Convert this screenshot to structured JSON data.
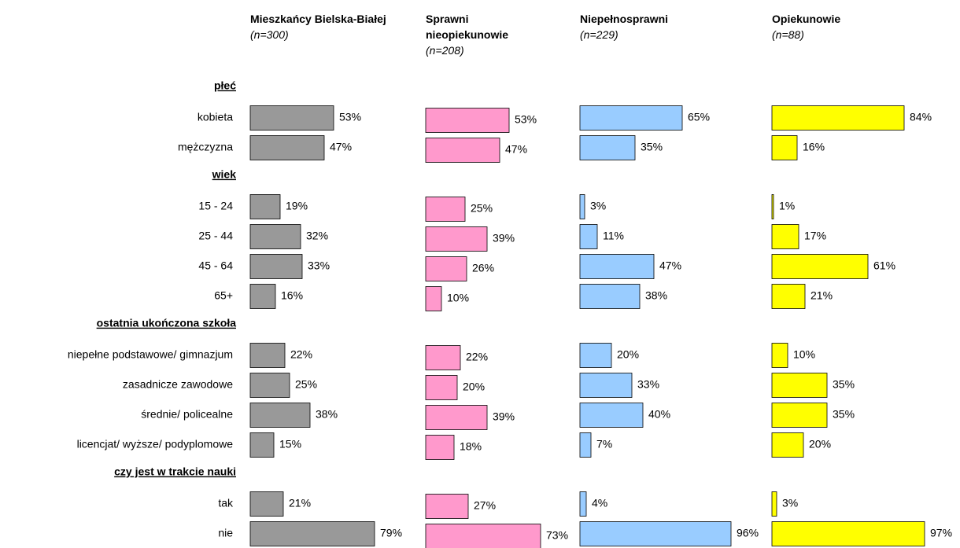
{
  "chart_data": {
    "type": "bar",
    "groups": [
      {
        "name": "płeć",
        "categories": [
          "kobieta",
          "mężczyzna"
        ]
      },
      {
        "name": "wiek",
        "categories": [
          "15 - 24",
          "25 - 44",
          "45 - 64",
          "65+"
        ]
      },
      {
        "name": "ostatnia ukończona szkoła",
        "categories": [
          "niepełne podstawowe/ gimnazjum",
          "zasadnicze zawodowe",
          "średnie/ policealne",
          "licencjat/ wyższe/ podyplomowe"
        ]
      },
      {
        "name": "czy jest w trakcie nauki",
        "categories": [
          "tak",
          "nie"
        ]
      }
    ],
    "series": [
      {
        "name": "Mieszkańcy Bielska-Białej",
        "n": "(n=300)",
        "color": "#999999",
        "values": [
          [
            53,
            47
          ],
          [
            19,
            32,
            33,
            16
          ],
          [
            22,
            25,
            38,
            15
          ],
          [
            21,
            79
          ]
        ],
        "value_labels": [
          [
            "53%",
            "47%"
          ],
          [
            "19%",
            "32%",
            "33%",
            "16%"
          ],
          [
            "22%",
            "25%",
            "38%",
            "15%"
          ],
          [
            "21%",
            "79%"
          ]
        ]
      },
      {
        "name": "Sprawni nieopiekunowie",
        "n": "(n=208)",
        "color": "#ff99cc",
        "values": [
          [
            53,
            47
          ],
          [
            25,
            39,
            26,
            10
          ],
          [
            22,
            20,
            39,
            18
          ],
          [
            27,
            73
          ]
        ],
        "value_labels": [
          [
            "53%",
            "47%"
          ],
          [
            "25%",
            "39%",
            "26%",
            "10%"
          ],
          [
            "22%",
            "20%",
            "39%",
            "18%"
          ],
          [
            "27%",
            "73%"
          ]
        ]
      },
      {
        "name": "Niepełnosprawni",
        "n": "(n=229)",
        "color": "#99ccff",
        "values": [
          [
            65,
            35
          ],
          [
            3,
            11,
            47,
            38
          ],
          [
            20,
            33,
            40,
            7
          ],
          [
            4,
            96
          ]
        ],
        "value_labels": [
          [
            "65%",
            "35%"
          ],
          [
            "3%",
            "11%",
            "47%",
            "38%"
          ],
          [
            "20%",
            "33%",
            "40%",
            "7%"
          ],
          [
            "4%",
            "96%"
          ]
        ]
      },
      {
        "name": "Opiekunowie",
        "n": "(n=88)",
        "color": "#ffff00",
        "values": [
          [
            84,
            16
          ],
          [
            1,
            17,
            61,
            21
          ],
          [
            10,
            35,
            35,
            20
          ],
          [
            3,
            97
          ]
        ],
        "value_labels": [
          [
            "84%",
            "16%"
          ],
          [
            "1%",
            "17%",
            "61%",
            "21%"
          ],
          [
            "10%",
            "35%",
            "35%",
            "20%"
          ],
          [
            "3%",
            "97%"
          ]
        ]
      }
    ]
  }
}
